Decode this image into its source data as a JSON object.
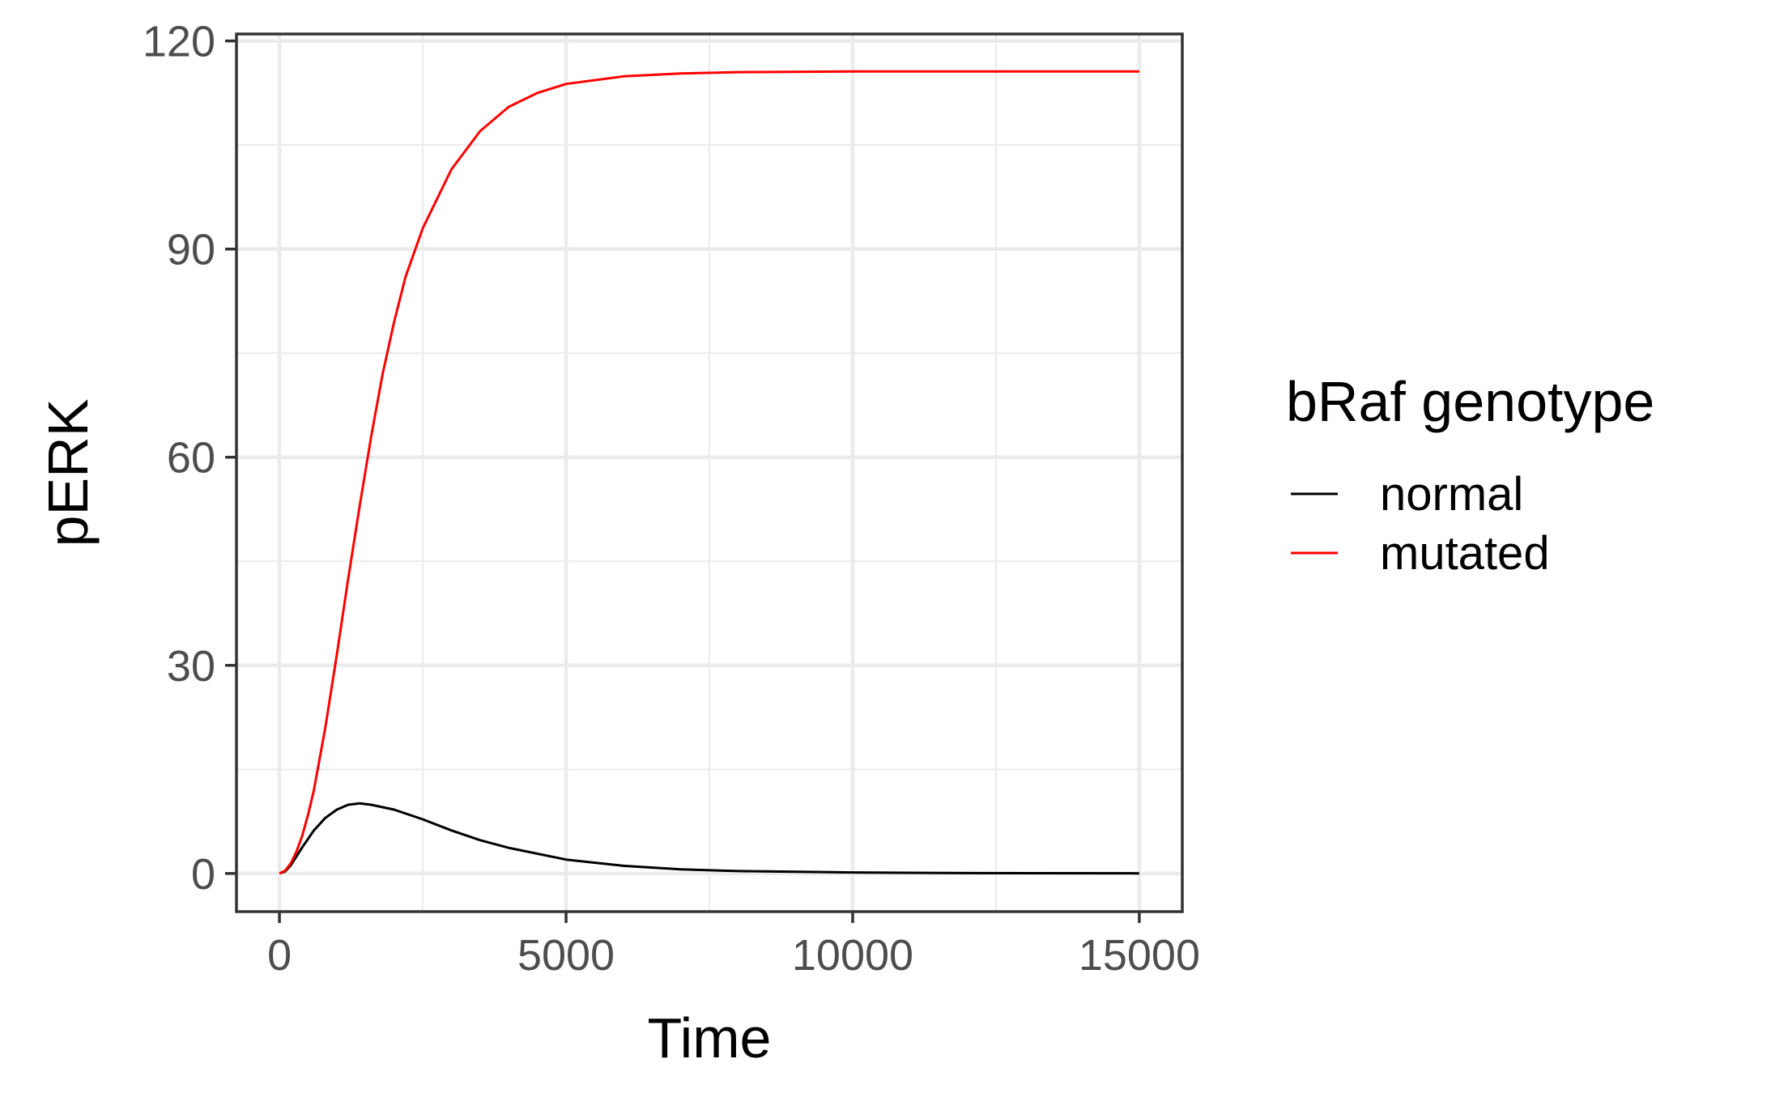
{
  "chart_data": {
    "type": "line",
    "title": "",
    "xlabel": "Time",
    "ylabel": "pERK",
    "xlim": [
      -750,
      15750
    ],
    "ylim": [
      -5.5,
      121
    ],
    "x_ticks": [
      0,
      5000,
      10000,
      15000
    ],
    "y_ticks": [
      0,
      30,
      60,
      90,
      120
    ],
    "x_tick_labels": [
      "0",
      "5000",
      "10000",
      "15000"
    ],
    "y_tick_labels": [
      "0",
      "30",
      "60",
      "90",
      "120"
    ],
    "grid": true,
    "legend": {
      "title": "bRaf genotype",
      "placement": "right"
    },
    "series": [
      {
        "name": "normal",
        "color": "#000000",
        "x": [
          0,
          100,
          200,
          300,
          400,
          600,
          800,
          1000,
          1200,
          1400,
          1600,
          2000,
          2500,
          3000,
          3500,
          4000,
          5000,
          6000,
          7000,
          8000,
          10000,
          12000,
          15000
        ],
        "y": [
          0,
          0.3,
          1.2,
          2.5,
          3.8,
          6.2,
          8.0,
          9.2,
          9.9,
          10.1,
          9.9,
          9.2,
          7.8,
          6.2,
          4.8,
          3.7,
          2.0,
          1.1,
          0.6,
          0.35,
          0.15,
          0.06,
          0.02
        ]
      },
      {
        "name": "mutated",
        "color": "#ff0000",
        "x": [
          0,
          100,
          200,
          300,
          400,
          500,
          600,
          800,
          1000,
          1200,
          1400,
          1600,
          1800,
          2000,
          2200,
          2500,
          3000,
          3500,
          4000,
          4500,
          5000,
          6000,
          7000,
          8000,
          10000,
          12000,
          15000
        ],
        "y": [
          0,
          0.4,
          1.5,
          3.2,
          5.5,
          8.5,
          12.0,
          21.0,
          31.5,
          42.5,
          53.0,
          63.0,
          72.0,
          79.5,
          86.0,
          93.0,
          101.5,
          107.0,
          110.5,
          112.5,
          113.8,
          114.9,
          115.3,
          115.5,
          115.6,
          115.6,
          115.6
        ]
      }
    ]
  }
}
